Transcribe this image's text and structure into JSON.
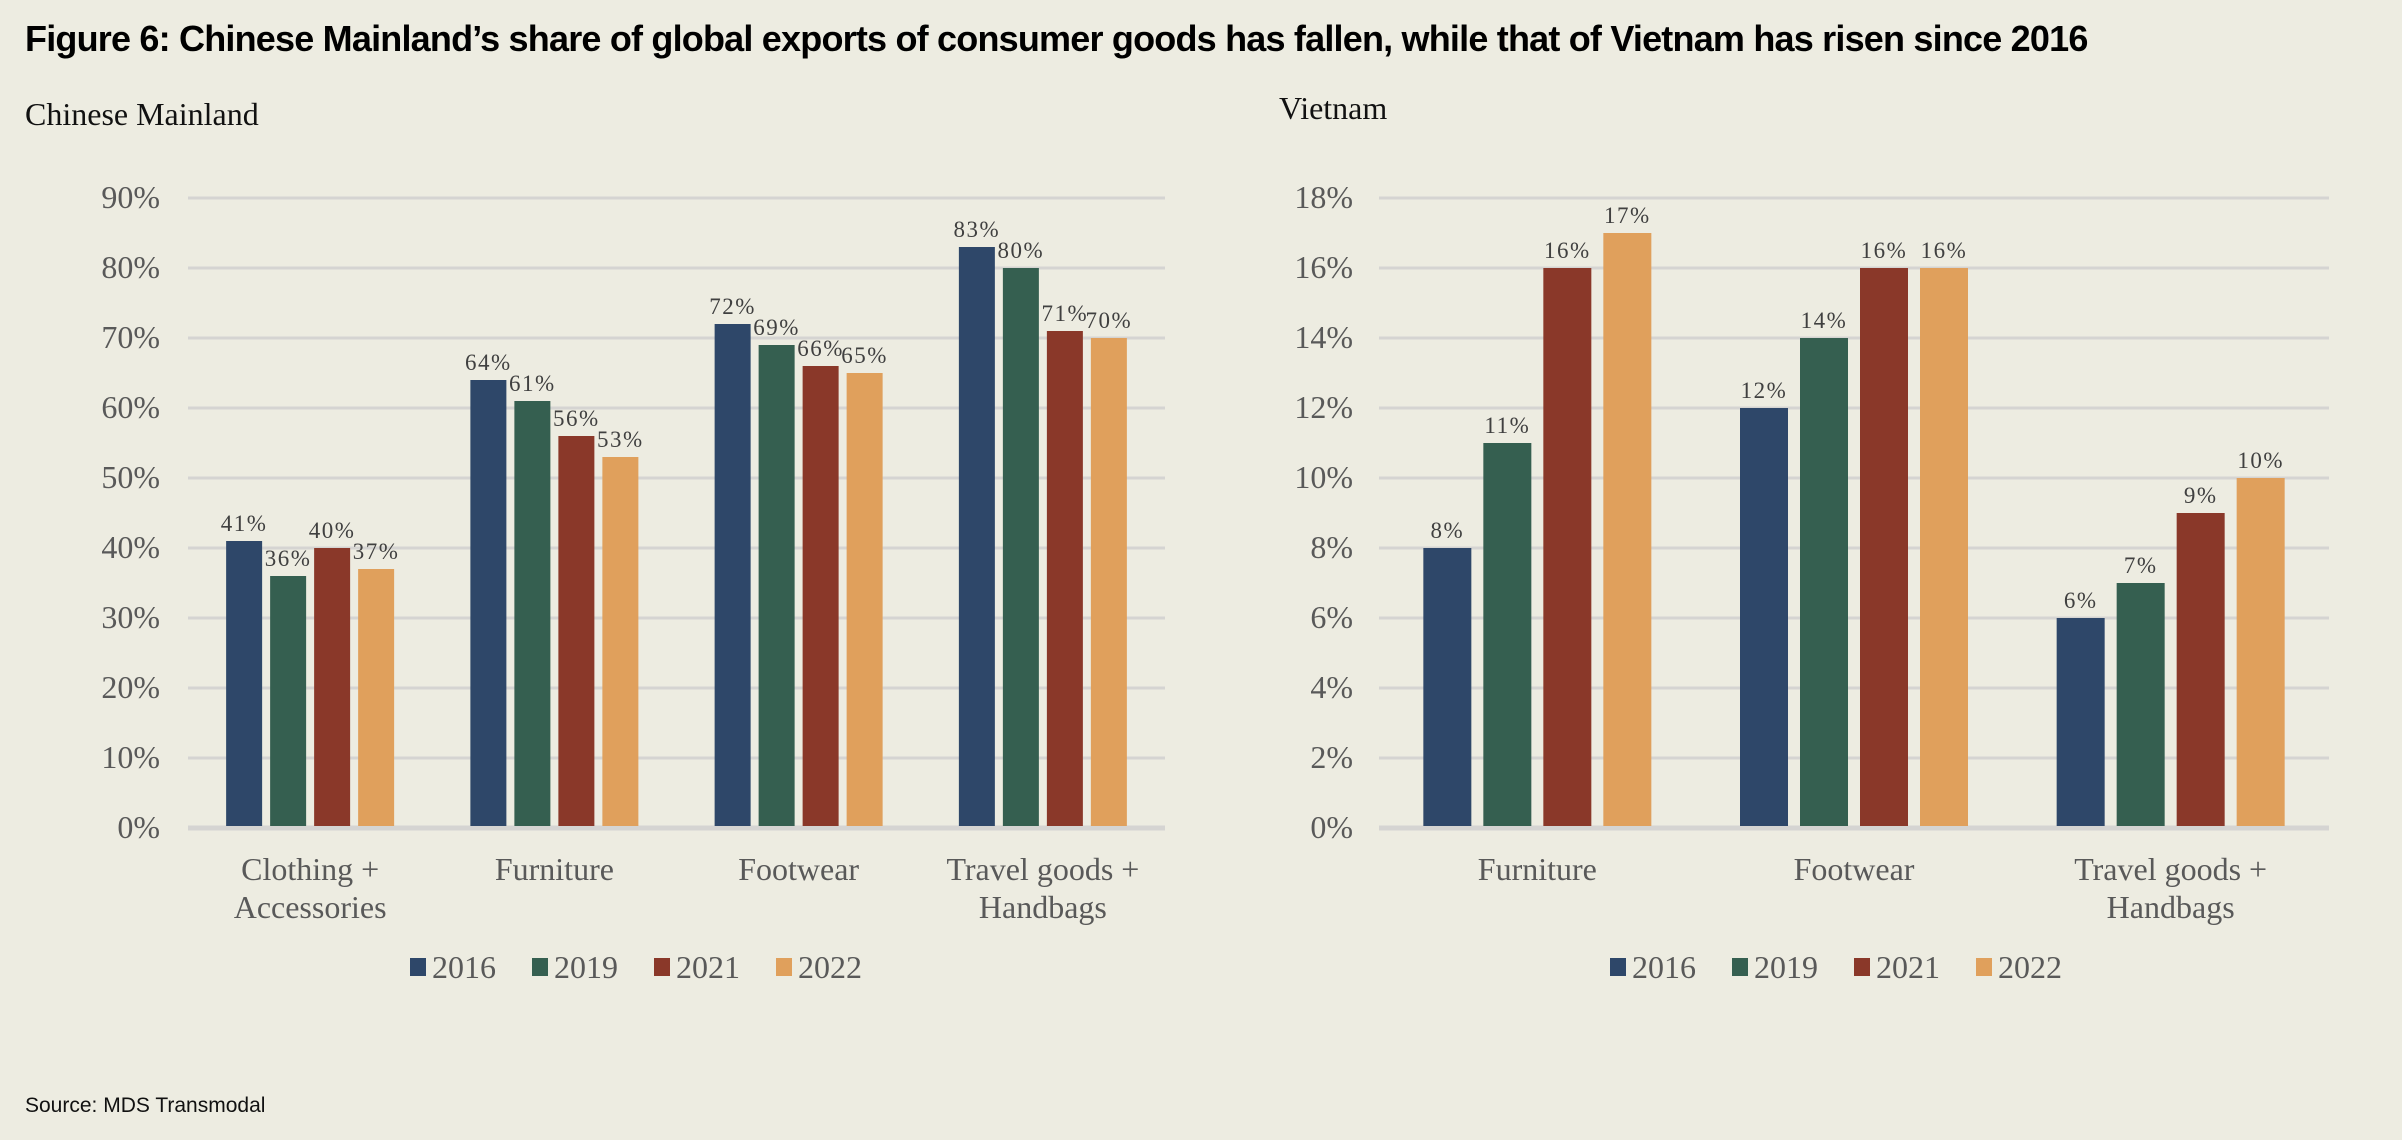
{
  "title": "Figure 6: Chinese Mainland’s share of global exports of consumer goods has fallen, while that of Vietnam has risen since 2016",
  "source": "Source: MDS  Transmodal",
  "colors": {
    "2016": "#2E4769",
    "2019": "#355F50",
    "2021": "#8A3829",
    "2022": "#E0A05C",
    "grid": "#D5D4D2",
    "axis_text": "#595959",
    "label_text": "#404040"
  },
  "chart_data": [
    {
      "type": "bar",
      "title": "Chinese Mainland",
      "xlabel": "",
      "ylabel": "",
      "ylim": [
        0,
        90
      ],
      "yticks": [
        0,
        10,
        20,
        30,
        40,
        50,
        60,
        70,
        80,
        90
      ],
      "ytick_labels": [
        "0%",
        "10%",
        "20%",
        "30%",
        "40%",
        "50%",
        "60%",
        "70%",
        "80%",
        "90%"
      ],
      "grid": true,
      "legend": "bottom",
      "categories": [
        [
          "Clothing +",
          "Accessories"
        ],
        [
          "Furniture"
        ],
        [
          "Footwear"
        ],
        [
          "Travel goods +",
          "Handbags"
        ]
      ],
      "series": [
        {
          "name": "2016",
          "values": [
            41,
            64,
            72,
            83
          ]
        },
        {
          "name": "2019",
          "values": [
            36,
            61,
            69,
            80
          ]
        },
        {
          "name": "2021",
          "values": [
            40,
            56,
            66,
            71
          ]
        },
        {
          "name": "2022",
          "values": [
            37,
            53,
            65,
            70
          ]
        }
      ]
    },
    {
      "type": "bar",
      "title": "Vietnam",
      "xlabel": "",
      "ylabel": "",
      "ylim": [
        0,
        18
      ],
      "yticks": [
        0,
        2,
        4,
        6,
        8,
        10,
        12,
        14,
        16,
        18
      ],
      "ytick_labels": [
        "0%",
        "2%",
        "4%",
        "6%",
        "8%",
        "10%",
        "12%",
        "14%",
        "16%",
        "18%"
      ],
      "grid": true,
      "legend": "bottom",
      "categories": [
        [
          "Furniture"
        ],
        [
          "Footwear"
        ],
        [
          "Travel goods +",
          "Handbags"
        ]
      ],
      "series": [
        {
          "name": "2016",
          "values": [
            8,
            12,
            6
          ]
        },
        {
          "name": "2019",
          "values": [
            11,
            14,
            7
          ]
        },
        {
          "name": "2021",
          "values": [
            16,
            16,
            9
          ]
        },
        {
          "name": "2022",
          "values": [
            17,
            16,
            10
          ]
        }
      ]
    }
  ]
}
